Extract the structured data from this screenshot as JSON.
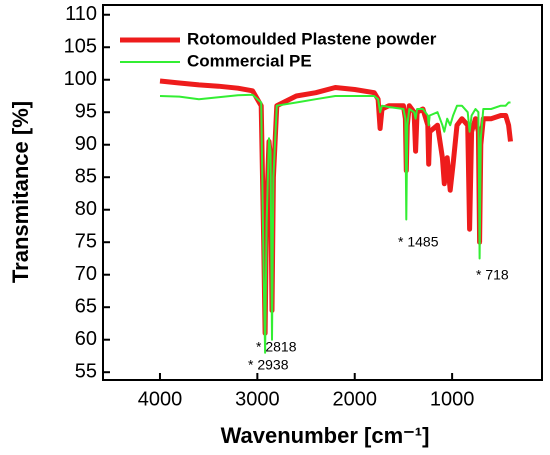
{
  "chart_data": {
    "type": "line",
    "xlabel": "Wavenumber [cm⁻¹]",
    "ylabel": "Transmitance [%]",
    "x": [
      4000,
      3800,
      3600,
      3400,
      3200,
      3050,
      2960,
      2935,
      2920,
      2905,
      2880,
      2865,
      2850,
      2835,
      2800,
      2600,
      2400,
      2200,
      2000,
      1800,
      1760,
      1740,
      1720,
      1650,
      1500,
      1480,
      1470,
      1460,
      1440,
      1390,
      1375,
      1360,
      1300,
      1250,
      1240,
      1230,
      1150,
      1100,
      1080,
      1050,
      1020,
      990,
      950,
      900,
      840,
      820,
      800,
      760,
      730,
      718,
      705,
      680,
      600,
      500,
      450,
      420,
      400
    ],
    "series": [
      {
        "name": "Rotomoulded Plastene powder",
        "color": "#ee1c1c",
        "width": 5,
        "values": [
          99.8,
          99.5,
          99.2,
          99.0,
          98.7,
          98.3,
          96,
          75,
          61,
          80,
          90.5,
          88,
          64.5,
          85,
          96,
          97.5,
          98,
          98.8,
          98.5,
          98,
          97,
          92.5,
          95.5,
          96,
          96,
          94,
          86,
          93,
          96,
          95,
          89,
          95,
          95.5,
          93,
          87,
          92,
          93,
          88,
          84,
          88,
          83,
          87,
          93,
          94,
          93,
          77,
          92,
          94,
          92,
          75,
          90,
          94,
          94,
          94.5,
          94.5,
          93,
          90.5
        ]
      },
      {
        "name": "Commercial  PE",
        "color": "#33ee33",
        "width": 2,
        "values": [
          97.5,
          97.4,
          97.0,
          97.3,
          97.6,
          97.7,
          96.5,
          70,
          58,
          78,
          91,
          89,
          60,
          85,
          96,
          96.5,
          97,
          97.5,
          97.5,
          97.5,
          97,
          95,
          96,
          95.8,
          95.5,
          94,
          78.5,
          93,
          95.5,
          95,
          94,
          95.5,
          95.5,
          94.5,
          93,
          94.5,
          95,
          93,
          92,
          94,
          93,
          94.5,
          96,
          96,
          95,
          92,
          94.5,
          95.5,
          95,
          72.5,
          91,
          95.5,
          95.5,
          96,
          96,
          96.5,
          96.5
        ]
      }
    ],
    "annotations": [
      "* 2818",
      "* 2938",
      "* 1485",
      "* 718"
    ],
    "xlim": [
      4585,
      77
    ],
    "xticks": [
      4000,
      3000,
      2000,
      1000
    ],
    "ylim": [
      53.8,
      111.5
    ],
    "yticks": [
      55,
      60,
      65,
      70,
      75,
      80,
      85,
      90,
      95,
      100,
      105,
      110
    ],
    "legend": "upper left"
  }
}
